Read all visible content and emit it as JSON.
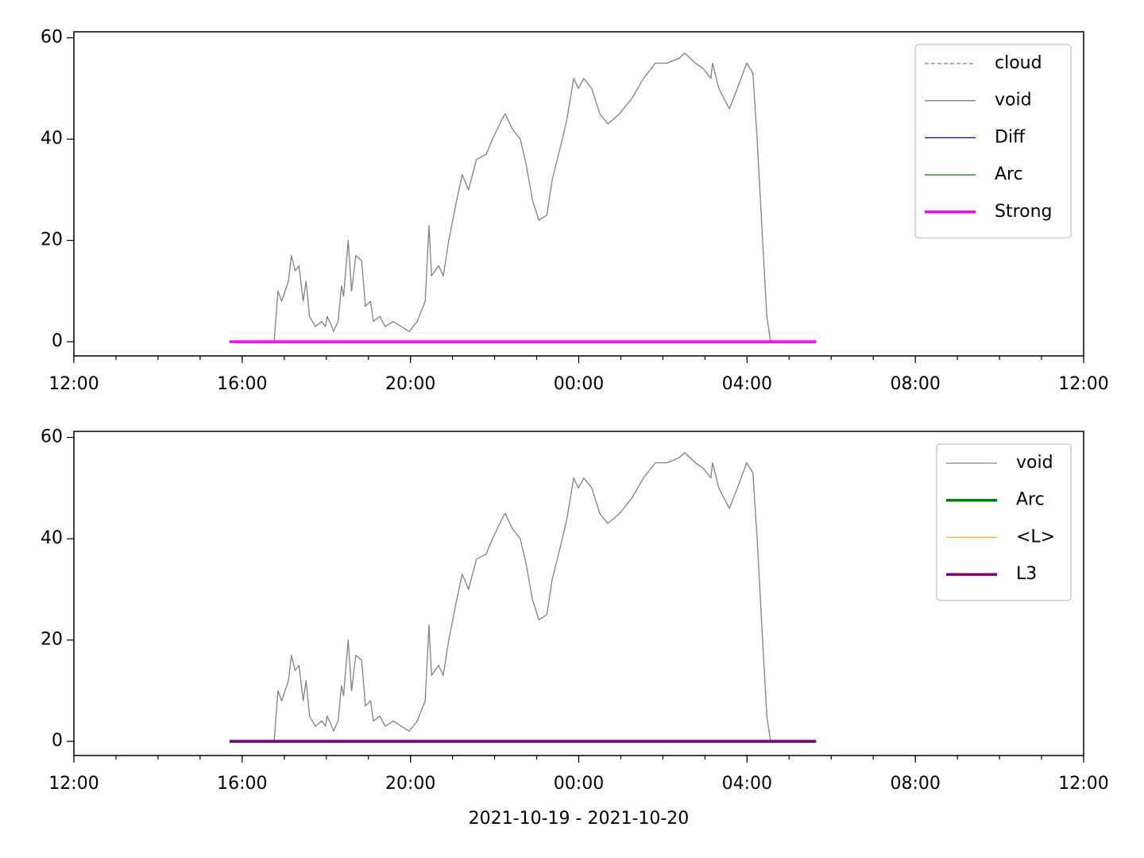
{
  "chart_data": [
    {
      "type": "line",
      "xlim": [
        12,
        36
      ],
      "ylim": [
        -2.8,
        61.2
      ],
      "xticks": [
        {
          "value": 12,
          "label": "12:00"
        },
        {
          "value": 16,
          "label": "16:00"
        },
        {
          "value": 20,
          "label": "20:00"
        },
        {
          "value": 24,
          "label": "00:00"
        },
        {
          "value": 28,
          "label": "04:00"
        },
        {
          "value": 32,
          "label": "08:00"
        },
        {
          "value": 36,
          "label": "12:00"
        }
      ],
      "yticks": [
        0,
        20,
        40,
        60
      ],
      "legend": "upper right",
      "series": [
        {
          "name": "cloud",
          "color": "#808080",
          "dash": true,
          "width": 1.3,
          "x": [
            15.7,
            29.64
          ],
          "values": [
            0,
            0
          ]
        },
        {
          "name": "void",
          "color": "#808080",
          "width": 1.3,
          "x": [
            16.38,
            16.76,
            16.85,
            16.94,
            17.1,
            17.17,
            17.26,
            17.35,
            17.45,
            17.52,
            17.6,
            17.74,
            17.89,
            17.98,
            18.02,
            18.13,
            18.17,
            18.28,
            18.36,
            18.41,
            18.52,
            18.6,
            18.7,
            18.84,
            18.93,
            19.05,
            19.12,
            19.27,
            19.4,
            19.59,
            19.78,
            19.97,
            20.16,
            20.35,
            20.44,
            20.5,
            20.67,
            20.78,
            20.91,
            21.1,
            21.23,
            21.38,
            21.57,
            21.8,
            21.95,
            22.18,
            22.25,
            22.42,
            22.61,
            22.75,
            22.9,
            23.05,
            23.24,
            23.37,
            23.61,
            23.72,
            23.88,
            23.99,
            24.12,
            24.31,
            24.5,
            24.69,
            24.97,
            25.26,
            25.54,
            25.82,
            26.1,
            26.39,
            26.52,
            26.77,
            26.95,
            27.14,
            27.18,
            27.33,
            27.58,
            27.77,
            27.99,
            28.14,
            28.24,
            28.37,
            28.47,
            28.56
          ],
          "values": [
            0,
            0,
            10,
            8,
            12,
            17,
            14,
            15,
            8,
            12,
            5,
            3,
            4,
            3,
            5,
            3,
            2,
            4,
            11,
            9,
            20,
            10,
            17,
            16,
            7,
            8,
            4,
            5,
            3,
            4,
            3,
            2,
            4,
            8,
            23,
            13,
            15,
            13,
            20,
            28,
            33,
            30,
            36,
            37,
            40,
            44,
            45,
            42,
            40,
            35,
            28,
            24,
            25,
            32,
            40,
            44,
            52,
            50,
            52,
            50,
            45,
            43,
            45,
            48,
            52,
            55,
            55,
            56,
            57,
            55,
            54,
            52,
            55,
            50,
            46,
            50,
            55,
            53,
            40,
            20,
            5,
            0
          ]
        },
        {
          "name": "Diff",
          "color": "#0000ff",
          "width": 1.3,
          "x": [
            15.7,
            29.64
          ],
          "values": [
            0,
            0
          ]
        },
        {
          "name": "Arc",
          "color": "#008000",
          "width": 1.3,
          "x": [
            15.7,
            29.64
          ],
          "values": [
            0,
            0
          ]
        },
        {
          "name": "Strong",
          "color": "#ff00ff",
          "width": 3.5,
          "x": [
            15.7,
            29.64
          ],
          "values": [
            0,
            0
          ]
        }
      ]
    },
    {
      "type": "line",
      "xlim": [
        12,
        36
      ],
      "ylim": [
        -2.8,
        61.2
      ],
      "xticks": [
        {
          "value": 12,
          "label": "12:00"
        },
        {
          "value": 16,
          "label": "16:00"
        },
        {
          "value": 20,
          "label": "20:00"
        },
        {
          "value": 24,
          "label": "00:00"
        },
        {
          "value": 28,
          "label": "04:00"
        },
        {
          "value": 32,
          "label": "08:00"
        },
        {
          "value": 36,
          "label": "12:00"
        }
      ],
      "yticks": [
        0,
        20,
        40,
        60
      ],
      "xlabel": "2021-10-19 - 2021-10-20",
      "legend": "upper right",
      "series": [
        {
          "name": "void",
          "color": "#808080",
          "width": 1.3,
          "x": [
            16.38,
            16.76,
            16.85,
            16.94,
            17.1,
            17.17,
            17.26,
            17.35,
            17.45,
            17.52,
            17.6,
            17.74,
            17.89,
            17.98,
            18.02,
            18.13,
            18.17,
            18.28,
            18.36,
            18.41,
            18.52,
            18.6,
            18.7,
            18.84,
            18.93,
            19.05,
            19.12,
            19.27,
            19.4,
            19.59,
            19.78,
            19.97,
            20.16,
            20.35,
            20.44,
            20.5,
            20.67,
            20.78,
            20.91,
            21.1,
            21.23,
            21.38,
            21.57,
            21.8,
            21.95,
            22.18,
            22.25,
            22.42,
            22.61,
            22.75,
            22.9,
            23.05,
            23.24,
            23.37,
            23.61,
            23.72,
            23.88,
            23.99,
            24.12,
            24.31,
            24.5,
            24.69,
            24.97,
            25.26,
            25.54,
            25.82,
            26.1,
            26.39,
            26.52,
            26.77,
            26.95,
            27.14,
            27.18,
            27.33,
            27.58,
            27.77,
            27.99,
            28.14,
            28.24,
            28.37,
            28.47,
            28.56
          ],
          "values": [
            0,
            0,
            10,
            8,
            12,
            17,
            14,
            15,
            8,
            12,
            5,
            3,
            4,
            3,
            5,
            3,
            2,
            4,
            11,
            9,
            20,
            10,
            17,
            16,
            7,
            8,
            4,
            5,
            3,
            4,
            3,
            2,
            4,
            8,
            23,
            13,
            15,
            13,
            20,
            28,
            33,
            30,
            36,
            37,
            40,
            44,
            45,
            42,
            40,
            35,
            28,
            24,
            25,
            32,
            40,
            44,
            52,
            50,
            52,
            50,
            45,
            43,
            45,
            48,
            52,
            55,
            55,
            56,
            57,
            55,
            54,
            52,
            55,
            50,
            46,
            50,
            55,
            53,
            40,
            20,
            5,
            0
          ]
        },
        {
          "name": "Arc",
          "color": "#008000",
          "width": 3.5,
          "x": [
            15.7,
            29.64
          ],
          "values": [
            0,
            0
          ]
        },
        {
          "name": "<L>",
          "color": "#ffa500",
          "width": 1.3,
          "x": [
            15.7,
            29.64
          ],
          "values": [
            0,
            0
          ]
        },
        {
          "name": "L3",
          "color": "#800080",
          "width": 3.5,
          "x": [
            15.7,
            29.64
          ],
          "values": [
            0,
            0
          ]
        }
      ]
    }
  ]
}
